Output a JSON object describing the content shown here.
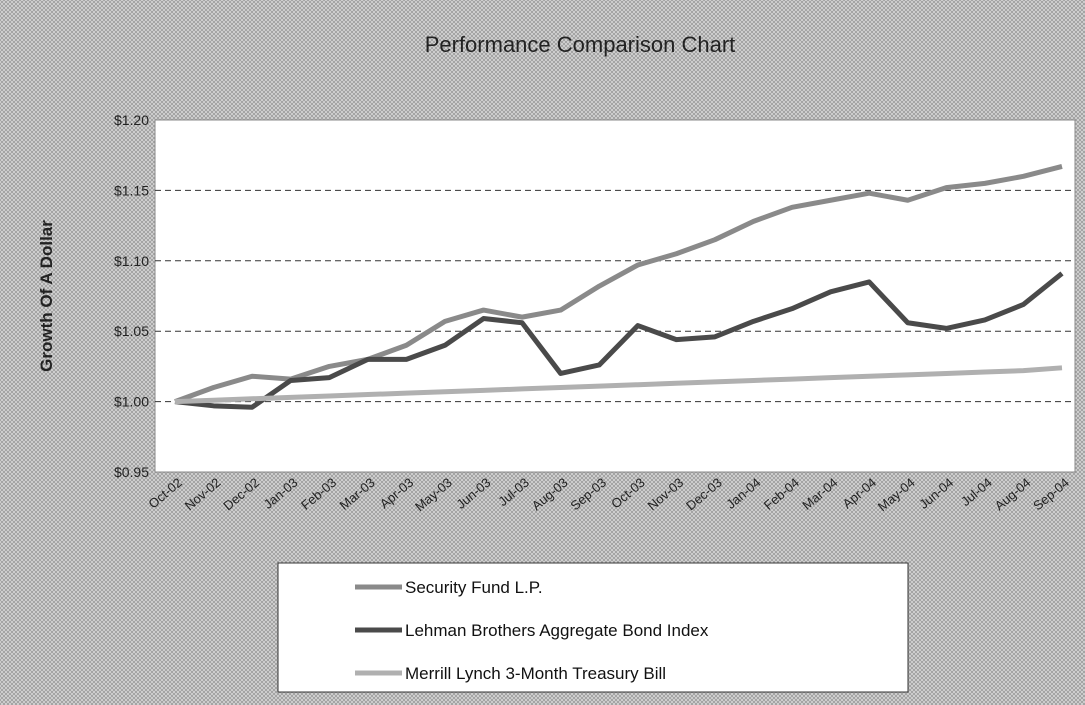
{
  "chart_data": {
    "type": "line",
    "title": "Performance Comparison Chart",
    "y_label": "Growth Of A Dollar",
    "categories": [
      "Oct-02",
      "Nov-02",
      "Dec-02",
      "Jan-03",
      "Feb-03",
      "Mar-03",
      "Apr-03",
      "May-03",
      "Jun-03",
      "Jul-03",
      "Aug-03",
      "Sep-03",
      "Oct-03",
      "Nov-03",
      "Dec-03",
      "Jan-04",
      "Feb-04",
      "Mar-04",
      "Apr-04",
      "May-04",
      "Jun-04",
      "Jul-04",
      "Aug-04",
      "Sep-04"
    ],
    "series": [
      {
        "name": "Security Fund L.P.",
        "color": "#8a8a8a",
        "values": [
          1.0,
          1.01,
          1.018,
          1.016,
          1.025,
          1.03,
          1.04,
          1.057,
          1.065,
          1.06,
          1.065,
          1.082,
          1.097,
          1.105,
          1.115,
          1.128,
          1.138,
          1.143,
          1.148,
          1.143,
          1.152,
          1.155,
          1.16,
          1.167
        ]
      },
      {
        "name": "Lehman Brothers Aggregate Bond Index",
        "color": "#4a4a4a",
        "values": [
          1.0,
          0.997,
          0.996,
          1.015,
          1.017,
          1.03,
          1.03,
          1.04,
          1.059,
          1.056,
          1.02,
          1.026,
          1.054,
          1.044,
          1.046,
          1.057,
          1.066,
          1.078,
          1.085,
          1.056,
          1.052,
          1.058,
          1.069,
          1.091
        ]
      },
      {
        "name": "Merrill Lynch 3-Month Treasury Bill",
        "color": "#b0b0b0",
        "values": [
          1.0,
          1.001,
          1.002,
          1.003,
          1.004,
          1.005,
          1.006,
          1.007,
          1.008,
          1.009,
          1.01,
          1.011,
          1.012,
          1.013,
          1.014,
          1.015,
          1.016,
          1.017,
          1.018,
          1.019,
          1.02,
          1.021,
          1.022,
          1.024
        ]
      }
    ],
    "ylim": [
      0.95,
      1.2
    ],
    "yticks": [
      {
        "value": 0.95,
        "label": "$0.95"
      },
      {
        "value": 1.0,
        "label": "$1.00"
      },
      {
        "value": 1.05,
        "label": "$1.05"
      },
      {
        "value": 1.1,
        "label": "$1.10"
      },
      {
        "value": 1.15,
        "label": "$1.15"
      },
      {
        "value": 1.2,
        "label": "$1.20"
      }
    ],
    "grid": true
  }
}
